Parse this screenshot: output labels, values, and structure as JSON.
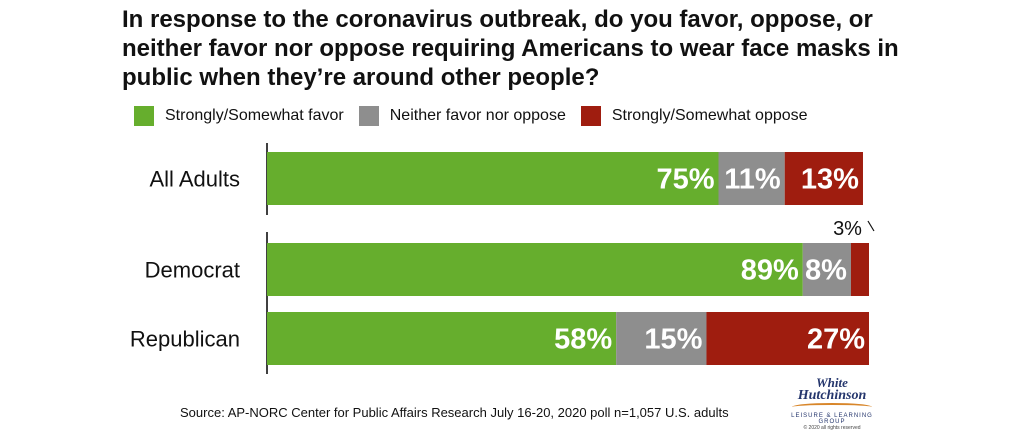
{
  "chart_data": {
    "type": "bar",
    "orientation": "horizontal",
    "stacked": true,
    "title": "In response to the coronavirus outbreak, do you favor, oppose, or neither favor nor oppose requiring Americans to wear face masks in public when they’re around other people?",
    "categories": [
      "All Adults",
      "Democrat",
      "Republican"
    ],
    "series": [
      {
        "name": "Strongly/Somewhat favor",
        "color": "#66ae2d",
        "values": [
          75,
          89,
          58
        ],
        "labels": [
          "75%",
          "89%",
          "58%"
        ]
      },
      {
        "name": "Neither favor nor oppose",
        "color": "#8e8e8e",
        "values": [
          11,
          8,
          15
        ],
        "labels": [
          "11%",
          "8%",
          "15%"
        ]
      },
      {
        "name": "Strongly/Somewhat oppose",
        "color": "#9f1d0f",
        "values": [
          13,
          3,
          27
        ],
        "labels": [
          "13%",
          "3%",
          "27%"
        ]
      }
    ],
    "xlim": [
      0,
      100
    ],
    "legend": "top",
    "grid": false
  },
  "footer": {
    "source": "Source: AP-NORC Center for Public Affairs Research July 16-20, 2020 poll n=1,057 U.S. adults"
  },
  "logo": {
    "line1": "White",
    "line2": "Hutchinson",
    "line3": "LEISURE & LEARNING GROUP",
    "line4": "© 2020 all rights reserved"
  }
}
